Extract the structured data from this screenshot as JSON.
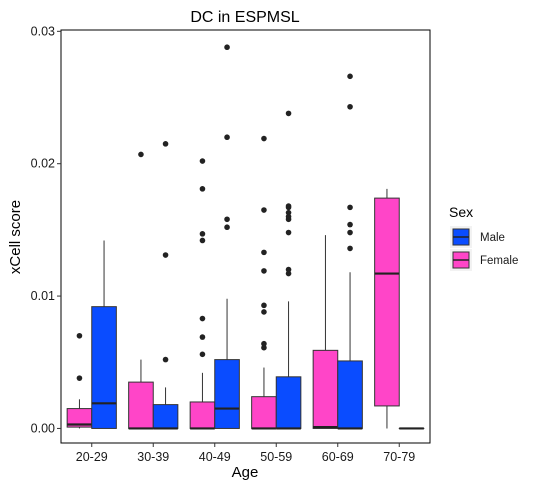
{
  "chart_data": {
    "type": "boxplot",
    "title": "DC in ESPMSL",
    "xlabel": "Age",
    "ylabel": "xCell score",
    "categories": [
      "20-29",
      "30-39",
      "40-49",
      "50-59",
      "60-69",
      "70-79"
    ],
    "ylim": [
      -0.0011,
      0.0301
    ],
    "yticks": [
      0.0,
      0.01,
      0.02,
      0.03
    ],
    "ytick_labels": [
      "0.00",
      "0.01",
      "0.02",
      "0.03"
    ],
    "grid": false,
    "legend": {
      "title": "Sex",
      "position": "right",
      "entries": [
        {
          "label": "Male",
          "color": "#0a4cff"
        },
        {
          "label": "Female",
          "color": "#ff45c8"
        }
      ]
    },
    "series": [
      {
        "name": "Female",
        "color": "#ff45c8",
        "boxes": [
          {
            "category": "20-29",
            "min": 0.0,
            "q1": 0.0001,
            "median": 0.0003,
            "q3": 0.0015,
            "max": 0.0022,
            "outliers": [
              0.0038,
              0.007
            ]
          },
          {
            "category": "30-39",
            "min": 0.0,
            "q1": 0.0,
            "median": 0.0,
            "q3": 0.0035,
            "max": 0.0052,
            "outliers": [
              0.0207
            ]
          },
          {
            "category": "40-49",
            "min": 0.0,
            "q1": 0.0,
            "median": 0.0,
            "q3": 0.002,
            "max": 0.0042,
            "outliers": [
              0.0056,
              0.0069,
              0.0083,
              0.0142,
              0.0147,
              0.0181,
              0.0202
            ]
          },
          {
            "category": "50-59",
            "min": 0.0,
            "q1": 0.0,
            "median": 0.0,
            "q3": 0.0024,
            "max": 0.0046,
            "outliers": [
              0.0061,
              0.0064,
              0.0088,
              0.0093,
              0.0119,
              0.0133,
              0.0165,
              0.0219
            ]
          },
          {
            "category": "60-69",
            "min": 0.0,
            "q1": 0.0,
            "median": 0.0001,
            "q3": 0.0059,
            "max": 0.0146,
            "outliers": []
          },
          {
            "category": "70-79",
            "min": 0.0,
            "q1": 0.0017,
            "median": 0.0117,
            "q3": 0.0174,
            "max": 0.0181,
            "outliers": []
          }
        ]
      },
      {
        "name": "Male",
        "color": "#0a4cff",
        "boxes": [
          {
            "category": "20-29",
            "min": 0.0,
            "q1": 0.0,
            "median": 0.0019,
            "q3": 0.0092,
            "max": 0.0142,
            "outliers": []
          },
          {
            "category": "30-39",
            "min": 0.0,
            "q1": 0.0,
            "median": 0.0,
            "q3": 0.0018,
            "max": 0.0031,
            "outliers": [
              0.0052,
              0.0131,
              0.0215
            ]
          },
          {
            "category": "40-49",
            "min": 0.0,
            "q1": 0.0,
            "median": 0.0015,
            "q3": 0.0052,
            "max": 0.0098,
            "outliers": [
              0.0152,
              0.0158,
              0.022,
              0.0288
            ]
          },
          {
            "category": "50-59",
            "min": 0.0,
            "q1": 0.0,
            "median": 0.0,
            "q3": 0.0039,
            "max": 0.0096,
            "outliers": [
              0.0117,
              0.012,
              0.0148,
              0.0158,
              0.016,
              0.0163,
              0.0167,
              0.0168,
              0.0238
            ]
          },
          {
            "category": "60-69",
            "min": 0.0,
            "q1": 0.0,
            "median": 0.0,
            "q3": 0.0051,
            "max": 0.0118,
            "outliers": [
              0.0136,
              0.0148,
              0.0154,
              0.0167,
              0.0243,
              0.0266
            ]
          },
          {
            "category": "70-79",
            "min": 0.0,
            "q1": 0.0,
            "median": 0.0,
            "q3": 0.0,
            "max": 0.0,
            "outliers": []
          }
        ]
      }
    ]
  }
}
